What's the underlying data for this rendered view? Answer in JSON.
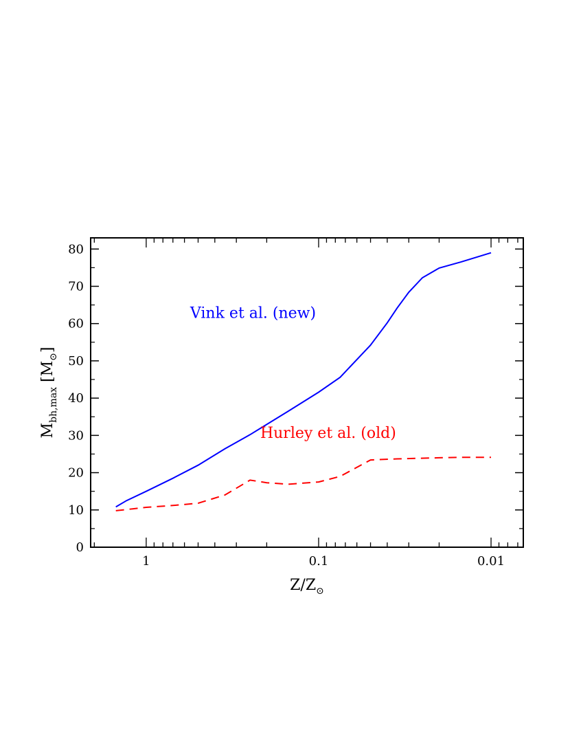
{
  "chart_data": {
    "type": "line",
    "x_scale": "log",
    "x_reversed": true,
    "xlim": [
      2.1,
      0.0065
    ],
    "ylim": [
      0,
      83
    ],
    "xlabel": {
      "main": "Z/Z",
      "sub": "⊙"
    },
    "ylabel": {
      "main": "M",
      "sub": "bh,max",
      "unit_open": "[M",
      "unit_sub": "⊙",
      "unit_close": "]"
    },
    "x_ticks": [
      1,
      0.1,
      0.01
    ],
    "x_tick_labels": [
      "1",
      "0.1",
      "0.01"
    ],
    "y_ticks": [
      0,
      10,
      20,
      30,
      40,
      50,
      60,
      70,
      80
    ],
    "y_tick_labels": [
      "0",
      "10",
      "20",
      "30",
      "40",
      "50",
      "60",
      "70",
      "80"
    ],
    "grid": false,
    "series": [
      {
        "name": "Vink et al. (new)",
        "color": "#0000ff",
        "dash": "solid",
        "x": [
          1.5,
          1.3,
          1.0,
          0.7,
          0.5,
          0.35,
          0.25,
          0.15,
          0.1,
          0.075,
          0.05,
          0.04,
          0.035,
          0.03,
          0.025,
          0.02,
          0.015,
          0.01
        ],
        "y": [
          10.8,
          12.5,
          15,
          18.5,
          22,
          26.4,
          30.2,
          36.5,
          41.6,
          45.6,
          54.2,
          60.2,
          64.2,
          68.4,
          72.3,
          74.9,
          76.5,
          79.0
        ]
      },
      {
        "name": "Hurley et al. (old)",
        "color": "#ff0000",
        "dash": "dashed",
        "x": [
          1.5,
          1.2,
          1.0,
          0.7,
          0.5,
          0.35,
          0.25,
          0.2,
          0.15,
          0.1,
          0.075,
          0.05,
          0.035,
          0.02,
          0.015,
          0.01
        ],
        "y": [
          9.8,
          10.3,
          10.7,
          11.2,
          11.8,
          14.0,
          18.0,
          17.3,
          16.9,
          17.5,
          19.0,
          23.4,
          23.7,
          24.0,
          24.1,
          24.1
        ]
      }
    ],
    "annotations": [
      {
        "text": "Vink et al. (new)",
        "color": "#0000ff",
        "x": 0.24,
        "y": 61.5
      },
      {
        "text": "Hurley et al. (old)",
        "color": "#ff0000",
        "x": 0.088,
        "y": 29.3
      }
    ]
  }
}
